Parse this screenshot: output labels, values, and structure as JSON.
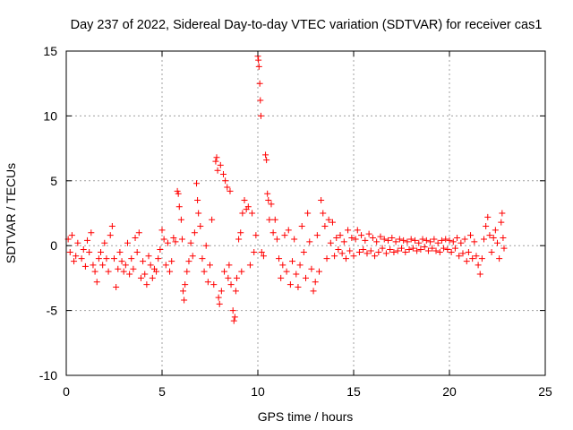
{
  "chart_data": {
    "type": "scatter",
    "title": "Day 237 of 2022, Sidereal Day-to-day VTEC variation (SDTVAR) for receiver cas1",
    "xlabel": "GPS time / hours",
    "ylabel": "SDTVAR / TECUs",
    "xlim": [
      0,
      25
    ],
    "ylim": [
      -10,
      15
    ],
    "xticks": [
      0,
      5,
      10,
      15,
      20,
      25
    ],
    "xtick_labels": [
      "0",
      "5",
      "10",
      "15",
      "20",
      "25"
    ],
    "yticks": [
      -10,
      -5,
      0,
      5,
      10,
      15
    ],
    "ytick_labels": [
      "-10",
      "-5",
      "0",
      "5",
      "10",
      "15"
    ],
    "grid": true,
    "marker": "+",
    "color": "#ff0000",
    "series": [
      {
        "name": "SDTVAR",
        "points": [
          [
            0.1,
            0.5
          ],
          [
            0.2,
            -0.5
          ],
          [
            0.3,
            0.8
          ],
          [
            0.4,
            -1.2
          ],
          [
            0.5,
            -0.8
          ],
          [
            0.6,
            0.2
          ],
          [
            0.8,
            -1.0
          ],
          [
            0.9,
            -0.3
          ],
          [
            1.0,
            -1.6
          ],
          [
            1.1,
            0.4
          ],
          [
            1.2,
            -0.5
          ],
          [
            1.3,
            1.0
          ],
          [
            1.4,
            -1.5
          ],
          [
            1.5,
            -2.0
          ],
          [
            1.6,
            -2.8
          ],
          [
            1.7,
            -1.0
          ],
          [
            1.8,
            -0.5
          ],
          [
            1.9,
            -1.5
          ],
          [
            2.0,
            0.2
          ],
          [
            2.1,
            -1.0
          ],
          [
            2.2,
            -2.0
          ],
          [
            2.3,
            0.8
          ],
          [
            2.4,
            1.5
          ],
          [
            2.5,
            -1.0
          ],
          [
            2.6,
            -3.2
          ],
          [
            2.7,
            -1.8
          ],
          [
            2.8,
            -0.5
          ],
          [
            2.9,
            -1.2
          ],
          [
            3.0,
            -2.0
          ],
          [
            3.1,
            -1.5
          ],
          [
            3.2,
            0.2
          ],
          [
            3.3,
            -2.2
          ],
          [
            3.4,
            -1.0
          ],
          [
            3.5,
            -1.8
          ],
          [
            3.6,
            0.6
          ],
          [
            3.7,
            -0.5
          ],
          [
            3.8,
            1.0
          ],
          [
            3.9,
            -2.5
          ],
          [
            4.0,
            -1.2
          ],
          [
            4.1,
            -2.2
          ],
          [
            4.2,
            -3.0
          ],
          [
            4.3,
            -0.8
          ],
          [
            4.4,
            -1.5
          ],
          [
            4.5,
            -2.5
          ],
          [
            4.6,
            -1.8
          ],
          [
            4.7,
            -2.0
          ],
          [
            4.8,
            -1.0
          ],
          [
            4.9,
            -0.3
          ],
          [
            5.0,
            1.2
          ],
          [
            5.1,
            0.5
          ],
          [
            5.2,
            -1.5
          ],
          [
            5.3,
            0.2
          ],
          [
            5.4,
            -2.0
          ],
          [
            5.5,
            -1.2
          ],
          [
            5.6,
            0.6
          ],
          [
            5.7,
            0.3
          ],
          [
            5.8,
            4.2
          ],
          [
            5.85,
            4.0
          ],
          [
            5.9,
            3.0
          ],
          [
            6.0,
            2.0
          ],
          [
            6.05,
            0.5
          ],
          [
            6.1,
            -3.5
          ],
          [
            6.15,
            -4.2
          ],
          [
            6.2,
            -3.0
          ],
          [
            6.3,
            -2.0
          ],
          [
            6.4,
            -1.2
          ],
          [
            6.5,
            0.2
          ],
          [
            6.6,
            -0.8
          ],
          [
            6.7,
            1.0
          ],
          [
            6.8,
            4.8
          ],
          [
            6.85,
            3.5
          ],
          [
            6.9,
            2.5
          ],
          [
            7.0,
            1.5
          ],
          [
            7.1,
            -1.0
          ],
          [
            7.2,
            -2.0
          ],
          [
            7.3,
            0.0
          ],
          [
            7.4,
            -2.8
          ],
          [
            7.5,
            -1.5
          ],
          [
            7.6,
            2.0
          ],
          [
            7.7,
            -3.0
          ],
          [
            7.8,
            6.5
          ],
          [
            7.85,
            6.8
          ],
          [
            7.9,
            5.8
          ],
          [
            7.95,
            -4.0
          ],
          [
            8.0,
            -4.5
          ],
          [
            8.05,
            6.2
          ],
          [
            8.1,
            -3.5
          ],
          [
            8.2,
            5.5
          ],
          [
            8.25,
            -2.0
          ],
          [
            8.3,
            5.0
          ],
          [
            8.4,
            4.5
          ],
          [
            8.45,
            -2.5
          ],
          [
            8.5,
            -1.5
          ],
          [
            8.55,
            4.2
          ],
          [
            8.6,
            -3.0
          ],
          [
            8.7,
            -5.0
          ],
          [
            8.75,
            -5.8
          ],
          [
            8.8,
            -5.5
          ],
          [
            8.85,
            -3.5
          ],
          [
            8.9,
            -2.5
          ],
          [
            9.0,
            0.5
          ],
          [
            9.1,
            1.0
          ],
          [
            9.15,
            -2.0
          ],
          [
            9.2,
            2.5
          ],
          [
            9.3,
            3.5
          ],
          [
            9.4,
            2.8
          ],
          [
            9.5,
            3.0
          ],
          [
            9.6,
            -1.5
          ],
          [
            9.7,
            2.5
          ],
          [
            9.8,
            -0.5
          ],
          [
            9.9,
            0.8
          ],
          [
            10.0,
            14.6
          ],
          [
            10.03,
            14.3
          ],
          [
            10.06,
            13.8
          ],
          [
            10.1,
            12.5
          ],
          [
            10.13,
            11.2
          ],
          [
            10.16,
            10.0
          ],
          [
            10.2,
            -0.5
          ],
          [
            10.3,
            -0.8
          ],
          [
            10.4,
            7.0
          ],
          [
            10.45,
            6.6
          ],
          [
            10.5,
            4.0
          ],
          [
            10.55,
            3.5
          ],
          [
            10.6,
            2.0
          ],
          [
            10.7,
            3.2
          ],
          [
            10.8,
            1.0
          ],
          [
            10.9,
            2.0
          ],
          [
            11.0,
            0.5
          ],
          [
            11.1,
            -1.0
          ],
          [
            11.2,
            -2.5
          ],
          [
            11.3,
            -1.5
          ],
          [
            11.4,
            0.8
          ],
          [
            11.5,
            -2.0
          ],
          [
            11.6,
            1.2
          ],
          [
            11.7,
            -3.0
          ],
          [
            11.8,
            -1.2
          ],
          [
            11.9,
            0.5
          ],
          [
            12.0,
            -2.2
          ],
          [
            12.1,
            -3.2
          ],
          [
            12.2,
            -1.5
          ],
          [
            12.3,
            1.5
          ],
          [
            12.4,
            -0.5
          ],
          [
            12.5,
            -2.5
          ],
          [
            12.6,
            2.5
          ],
          [
            12.7,
            0.3
          ],
          [
            12.8,
            -1.8
          ],
          [
            12.9,
            -3.5
          ],
          [
            13.0,
            -2.8
          ],
          [
            13.1,
            0.8
          ],
          [
            13.2,
            -2.0
          ],
          [
            13.3,
            3.5
          ],
          [
            13.4,
            2.5
          ],
          [
            13.5,
            1.5
          ],
          [
            13.6,
            -1.0
          ],
          [
            13.7,
            2.0
          ],
          [
            13.8,
            0.2
          ],
          [
            13.9,
            1.8
          ],
          [
            14.0,
            -0.8
          ],
          [
            14.1,
            0.6
          ],
          [
            14.2,
            -0.3
          ],
          [
            14.3,
            0.8
          ],
          [
            14.4,
            -0.6
          ],
          [
            14.5,
            0.3
          ],
          [
            14.6,
            -1.0
          ],
          [
            14.7,
            1.2
          ],
          [
            14.8,
            -0.4
          ],
          [
            14.9,
            0.6
          ],
          [
            15.0,
            -0.8
          ],
          [
            15.1,
            0.5
          ],
          [
            15.2,
            1.2
          ],
          [
            15.3,
            -0.5
          ],
          [
            15.4,
            0.8
          ],
          [
            15.5,
            -0.3
          ],
          [
            15.6,
            0.4
          ],
          [
            15.7,
            -0.6
          ],
          [
            15.8,
            0.9
          ],
          [
            15.9,
            -0.4
          ],
          [
            16.0,
            0.6
          ],
          [
            16.1,
            -0.8
          ],
          [
            16.2,
            0.3
          ],
          [
            16.3,
            -0.5
          ],
          [
            16.4,
            0.7
          ],
          [
            16.5,
            -0.2
          ],
          [
            16.6,
            0.5
          ],
          [
            16.7,
            -0.6
          ],
          [
            16.8,
            0.4
          ],
          [
            16.9,
            -0.3
          ],
          [
            17.0,
            0.6
          ],
          [
            17.1,
            -0.5
          ],
          [
            17.2,
            0.3
          ],
          [
            17.3,
            -0.4
          ],
          [
            17.4,
            0.5
          ],
          [
            17.5,
            -0.2
          ],
          [
            17.6,
            0.4
          ],
          [
            17.7,
            -0.5
          ],
          [
            17.8,
            0.3
          ],
          [
            17.9,
            -0.3
          ],
          [
            18.0,
            0.5
          ],
          [
            18.1,
            -0.2
          ],
          [
            18.2,
            0.4
          ],
          [
            18.3,
            -0.4
          ],
          [
            18.4,
            0.2
          ],
          [
            18.5,
            -0.3
          ],
          [
            18.6,
            0.5
          ],
          [
            18.7,
            -0.1
          ],
          [
            18.8,
            0.4
          ],
          [
            18.9,
            -0.4
          ],
          [
            19.0,
            0.3
          ],
          [
            19.1,
            -0.2
          ],
          [
            19.2,
            0.5
          ],
          [
            19.3,
            -0.4
          ],
          [
            19.4,
            0.2
          ],
          [
            19.5,
            -0.5
          ],
          [
            19.6,
            0.4
          ],
          [
            19.7,
            -0.2
          ],
          [
            19.8,
            0.5
          ],
          [
            19.9,
            -0.3
          ],
          [
            20.0,
            0.4
          ],
          [
            20.1,
            -0.5
          ],
          [
            20.2,
            0.3
          ],
          [
            20.3,
            -0.2
          ],
          [
            20.4,
            0.6
          ],
          [
            20.5,
            -0.8
          ],
          [
            20.6,
            0.2
          ],
          [
            20.7,
            -0.6
          ],
          [
            20.8,
            0.5
          ],
          [
            20.9,
            -1.2
          ],
          [
            21.0,
            -0.5
          ],
          [
            21.1,
            0.8
          ],
          [
            21.2,
            -1.0
          ],
          [
            21.3,
            0.3
          ],
          [
            21.4,
            -0.8
          ],
          [
            21.5,
            -1.5
          ],
          [
            21.6,
            -2.2
          ],
          [
            21.7,
            -1.0
          ],
          [
            21.8,
            0.5
          ],
          [
            21.9,
            1.5
          ],
          [
            22.0,
            2.2
          ],
          [
            22.1,
            0.8
          ],
          [
            22.2,
            -0.5
          ],
          [
            22.3,
            0.6
          ],
          [
            22.4,
            1.2
          ],
          [
            22.5,
            0.2
          ],
          [
            22.6,
            -1.0
          ],
          [
            22.7,
            1.8
          ],
          [
            22.75,
            2.5
          ],
          [
            22.8,
            0.6
          ],
          [
            22.85,
            -0.2
          ]
        ]
      }
    ]
  }
}
